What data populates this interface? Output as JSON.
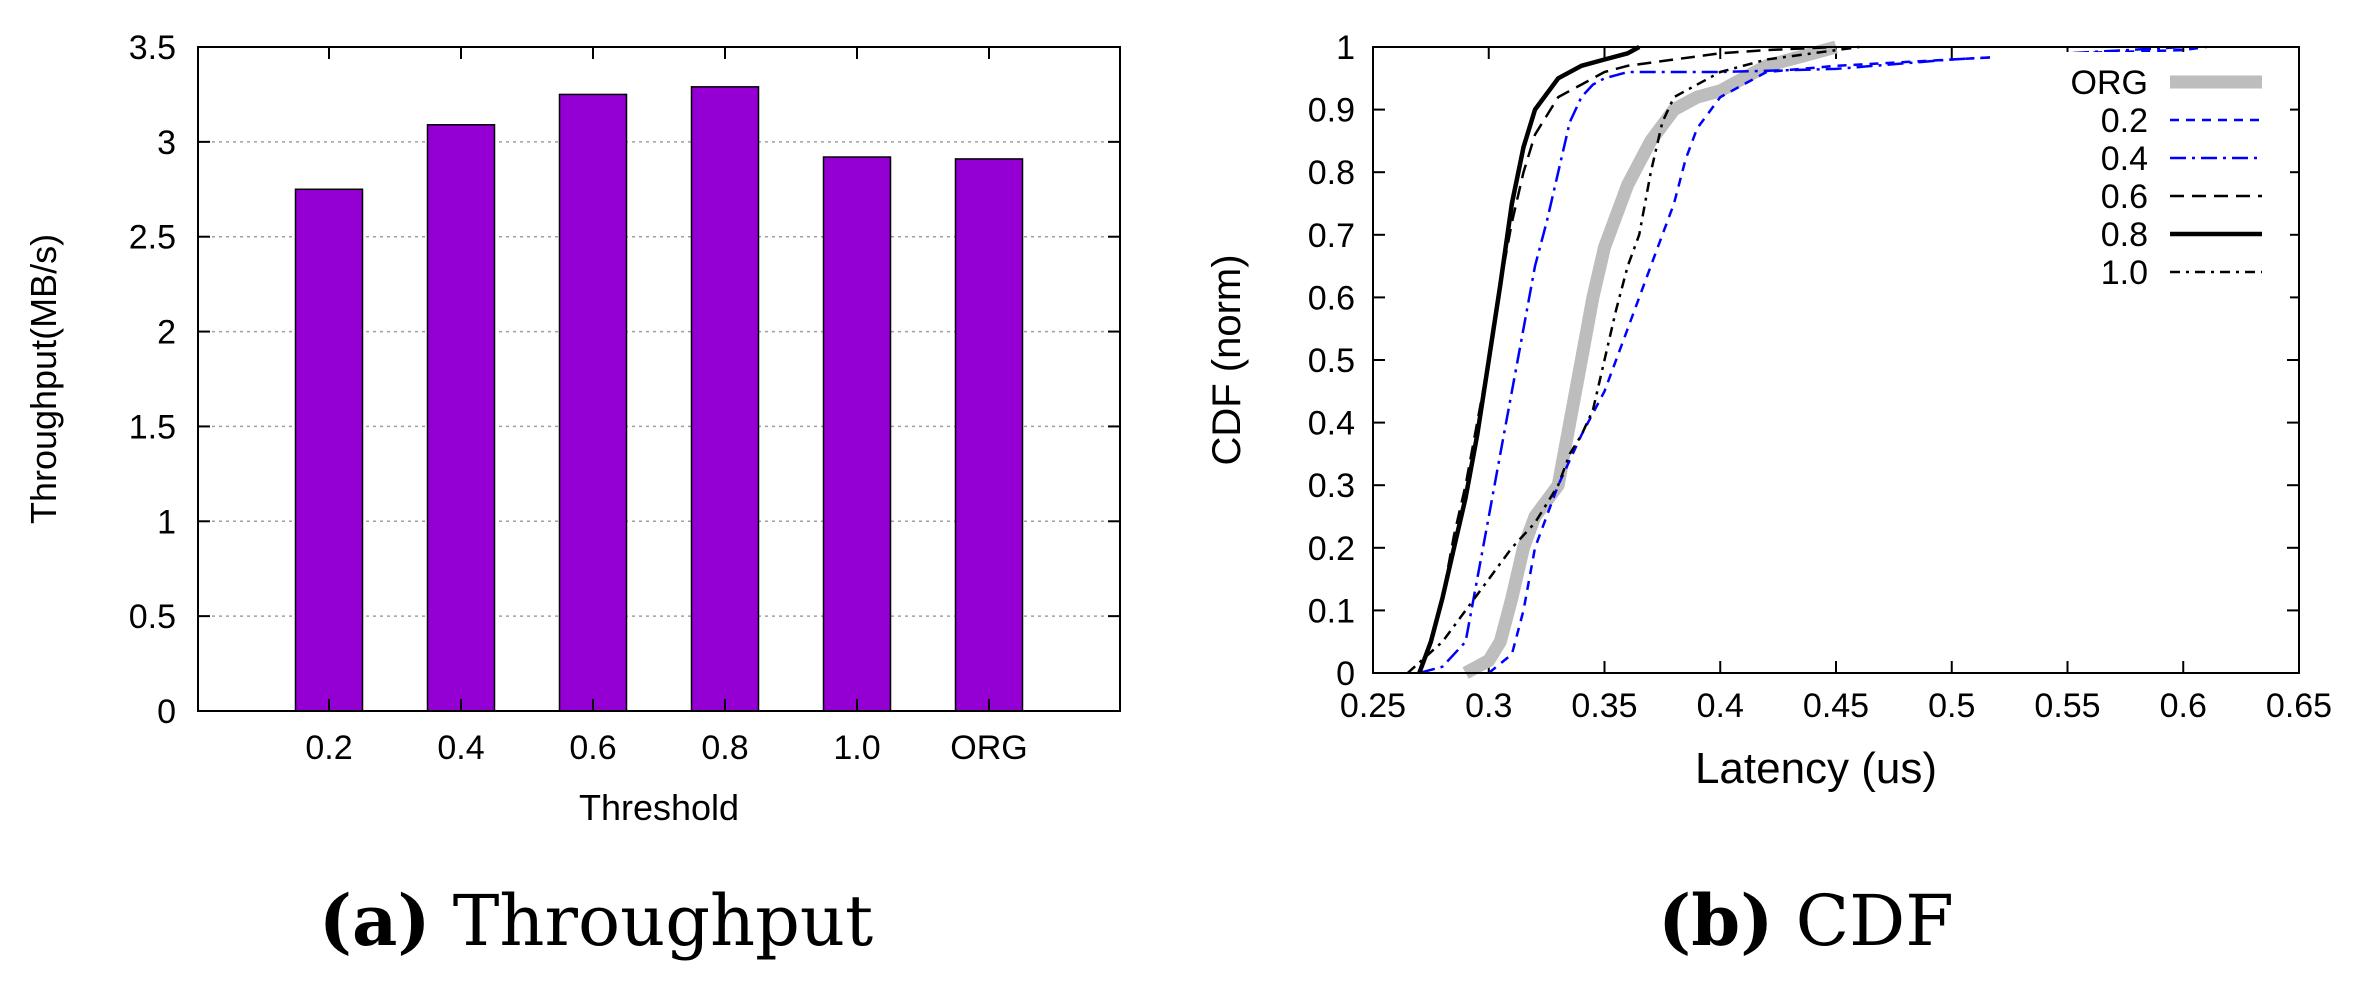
{
  "figure": {
    "colors": {
      "bar": "#9400d3",
      "grid": "#a0a0a0",
      "org": "#bdbdbd",
      "blue": "#0000ff",
      "black": "#000000"
    }
  },
  "chart_data": [
    {
      "id": "a",
      "type": "bar",
      "caption_label": "(a)",
      "caption_title": "Throughput",
      "xlabel": "Threshold",
      "ylabel": "Throughput(MB/s)",
      "categories": [
        "0.2",
        "0.4",
        "0.6",
        "0.8",
        "1.0",
        "ORG"
      ],
      "values": [
        2.75,
        3.09,
        3.25,
        3.29,
        2.92,
        2.91
      ],
      "ylim": [
        0,
        3.5
      ],
      "yticks": [
        "0",
        "0.5",
        "1",
        "1.5",
        "2",
        "2.5",
        "3",
        "3.5"
      ],
      "grid": "horizontal dotted"
    },
    {
      "id": "b",
      "type": "line",
      "caption_label": "(b)",
      "caption_title": "CDF",
      "xlabel": "Latency (us)",
      "ylabel": "CDF (norm)",
      "xlim": [
        0.25,
        0.65
      ],
      "ylim": [
        0,
        1
      ],
      "xticks": [
        "0.25",
        "0.3",
        "0.35",
        "0.4",
        "0.45",
        "0.5",
        "0.55",
        "0.6",
        "0.65"
      ],
      "yticks": [
        "0",
        "0.1",
        "0.2",
        "0.3",
        "0.4",
        "0.5",
        "0.6",
        "0.7",
        "0.8",
        "0.9",
        "1"
      ],
      "legend_position": "top-right",
      "series": [
        {
          "name": "ORG",
          "style": "org",
          "x": [
            0.29,
            0.3,
            0.305,
            0.31,
            0.315,
            0.32,
            0.33,
            0.335,
            0.34,
            0.345,
            0.35,
            0.355,
            0.36,
            0.37,
            0.38,
            0.39,
            0.4,
            0.42,
            0.44,
            0.45
          ],
          "y": [
            0.0,
            0.02,
            0.05,
            0.12,
            0.2,
            0.25,
            0.3,
            0.4,
            0.5,
            0.6,
            0.68,
            0.73,
            0.78,
            0.85,
            0.9,
            0.92,
            0.93,
            0.97,
            0.99,
            1.0
          ]
        },
        {
          "name": "0.2",
          "style": "blue-dash",
          "x": [
            0.3,
            0.31,
            0.315,
            0.32,
            0.325,
            0.33,
            0.34,
            0.35,
            0.36,
            0.37,
            0.38,
            0.385,
            0.39,
            0.4,
            0.42,
            0.45,
            0.5,
            0.55,
            0.6,
            0.61
          ],
          "y": [
            0.0,
            0.03,
            0.1,
            0.2,
            0.25,
            0.3,
            0.38,
            0.45,
            0.55,
            0.65,
            0.75,
            0.82,
            0.87,
            0.92,
            0.96,
            0.97,
            0.98,
            0.99,
            0.995,
            1.0
          ]
        },
        {
          "name": "0.4",
          "style": "blue-dashdot",
          "x": [
            0.27,
            0.28,
            0.29,
            0.295,
            0.3,
            0.305,
            0.31,
            0.315,
            0.32,
            0.325,
            0.33,
            0.335,
            0.34,
            0.345,
            0.35,
            0.355,
            0.36,
            0.4,
            0.45,
            0.5,
            0.55,
            0.6
          ],
          "y": [
            0.0,
            0.01,
            0.05,
            0.15,
            0.25,
            0.35,
            0.45,
            0.55,
            0.65,
            0.72,
            0.8,
            0.88,
            0.92,
            0.94,
            0.95,
            0.955,
            0.96,
            0.96,
            0.965,
            0.98,
            0.99,
            1.0
          ]
        },
        {
          "name": "0.6",
          "style": "black-dash",
          "x": [
            0.27,
            0.275,
            0.28,
            0.285,
            0.29,
            0.295,
            0.3,
            0.305,
            0.31,
            0.315,
            0.32,
            0.325,
            0.33,
            0.34,
            0.35,
            0.36,
            0.38,
            0.4,
            0.42,
            0.45
          ],
          "y": [
            0.0,
            0.05,
            0.12,
            0.22,
            0.3,
            0.4,
            0.5,
            0.62,
            0.72,
            0.8,
            0.86,
            0.89,
            0.92,
            0.94,
            0.96,
            0.97,
            0.98,
            0.99,
            0.995,
            1.0
          ]
        },
        {
          "name": "0.8",
          "style": "black-solid",
          "x": [
            0.27,
            0.275,
            0.28,
            0.285,
            0.29,
            0.295,
            0.3,
            0.305,
            0.31,
            0.315,
            0.32,
            0.33,
            0.34,
            0.35,
            0.36,
            0.365
          ],
          "y": [
            0.0,
            0.05,
            0.12,
            0.2,
            0.28,
            0.38,
            0.5,
            0.62,
            0.75,
            0.84,
            0.9,
            0.95,
            0.97,
            0.98,
            0.99,
            1.0
          ]
        },
        {
          "name": "1.0",
          "style": "black-dashdot",
          "x": [
            0.265,
            0.28,
            0.29,
            0.3,
            0.31,
            0.32,
            0.33,
            0.335,
            0.34,
            0.345,
            0.35,
            0.355,
            0.36,
            0.365,
            0.37,
            0.375,
            0.38,
            0.4,
            0.42,
            0.44,
            0.46
          ],
          "y": [
            0.0,
            0.05,
            0.1,
            0.15,
            0.2,
            0.24,
            0.3,
            0.35,
            0.38,
            0.42,
            0.5,
            0.58,
            0.65,
            0.7,
            0.8,
            0.88,
            0.92,
            0.96,
            0.98,
            0.99,
            1.0
          ]
        }
      ]
    }
  ]
}
